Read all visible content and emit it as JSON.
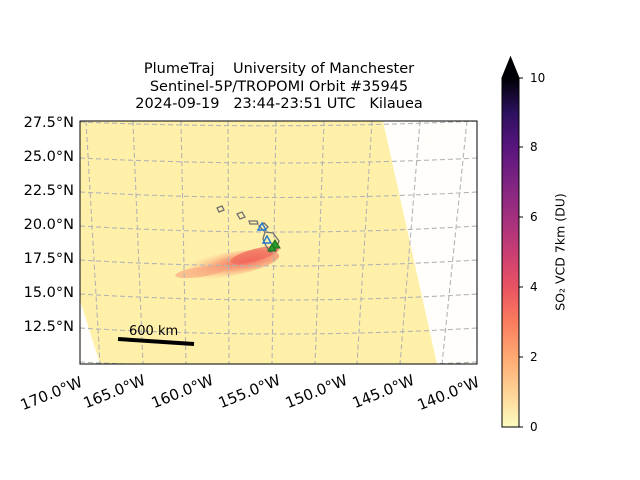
{
  "title": {
    "line1": "PlumeTraj    University of Manchester",
    "line2": "Sentinel-5P/TROPOMI Orbit #35945",
    "line3": "2024-09-19   23:44-23:51 UTC   Kilauea"
  },
  "map": {
    "lat_labels": [
      "27.5°N",
      "25.0°N",
      "22.5°N",
      "20.0°N",
      "17.5°N",
      "15.0°N",
      "12.5°N"
    ],
    "lon_labels": [
      "170.0°W",
      "165.0°W",
      "160.0°W",
      "155.0°W",
      "150.0°W",
      "145.0°W",
      "140.0°W"
    ],
    "scale_bar_label": "600 km",
    "swath_color": "#fff0a8",
    "plume_color": "#f7826a",
    "volcano_marker_color": "#2a9a2a",
    "island_outline_color": "#707070",
    "grid": "on"
  },
  "colorbar": {
    "label": "SO₂ VCD 7km (DU)",
    "ticks": [
      "0",
      "2",
      "4",
      "6",
      "8",
      "10"
    ],
    "colormap": "magma_r",
    "extend": "max"
  }
}
